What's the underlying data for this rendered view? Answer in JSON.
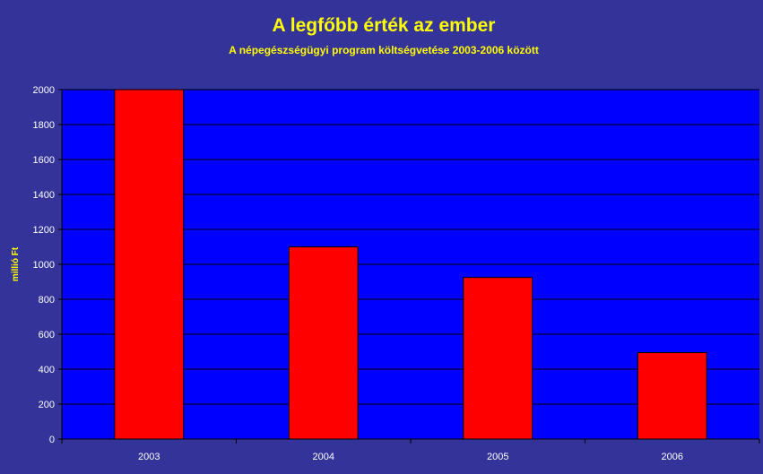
{
  "chart_data": {
    "type": "bar",
    "title": "A legfőbb érték az ember",
    "subtitle": "A népegészségügyi program költségvetése 2003-2006 között",
    "ylabel": "millió Ft",
    "xlabel": "",
    "categories": [
      "2003",
      "2004",
      "2005",
      "2006"
    ],
    "values": [
      2000,
      1100,
      925,
      495
    ],
    "ylim": [
      0,
      2000
    ],
    "yticks": [
      0,
      200,
      400,
      600,
      800,
      1000,
      1200,
      1400,
      1600,
      1800,
      2000
    ],
    "grid": true,
    "legend": "none",
    "colors": {
      "background": "#333399",
      "plot_area": "#0000FF",
      "bar": "#FF0000",
      "title_text": "#FFFF00",
      "tick_text": "#FFFFFF",
      "gridline": "#000000"
    }
  }
}
